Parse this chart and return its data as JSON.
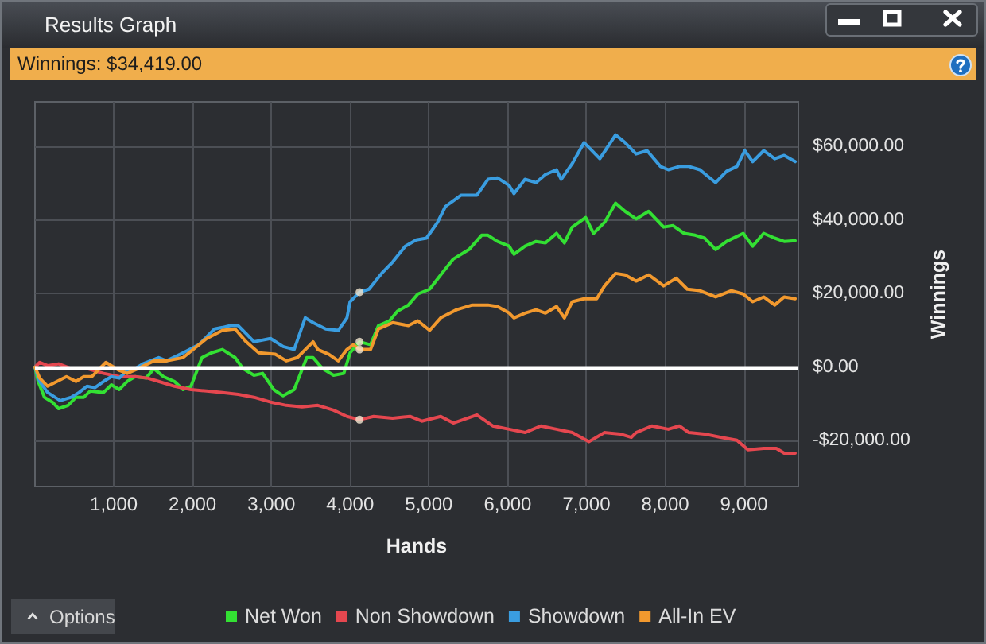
{
  "chart_data": {
    "type": "line",
    "title": "Results Graph",
    "subtitle": "Winnings: $34,419.00",
    "xlabel": "Hands",
    "ylabel": "Winnings",
    "annotations": [
      "Options"
    ],
    "xlim": [
      0,
      9690
    ],
    "ylim": [
      -32500,
      72200
    ],
    "xticks": [
      {
        "value": 1000,
        "label": "1,000"
      },
      {
        "value": 2000,
        "label": "2,000"
      },
      {
        "value": 3000,
        "label": "3,000"
      },
      {
        "value": 4000,
        "label": "4,000"
      },
      {
        "value": 5000,
        "label": "5,000"
      },
      {
        "value": 6000,
        "label": "6,000"
      },
      {
        "value": 7000,
        "label": "7,000"
      },
      {
        "value": 8000,
        "label": "8,000"
      },
      {
        "value": 9000,
        "label": "9,000"
      }
    ],
    "yticks": [
      {
        "value": -20000,
        "label": "-$20,000.00"
      },
      {
        "value": 0,
        "label": "$0.00"
      },
      {
        "value": 20000,
        "label": "$20,000.00"
      },
      {
        "value": 40000,
        "label": "$40,000.00"
      },
      {
        "value": 60000,
        "label": "$60,000.00"
      }
    ],
    "grid": true,
    "legend": "bottom",
    "ref_lines": [
      {
        "axis": "y",
        "value": 0,
        "color": "#ffffff"
      }
    ],
    "series": [
      {
        "name": "Net Won",
        "color": "#33e033",
        "x": [
          0,
          40,
          120,
          220,
          300,
          420,
          520,
          620,
          700,
          870,
          970,
          1070,
          1170,
          1270,
          1410,
          1510,
          1630,
          1770,
          1880,
          1980,
          2120,
          2240,
          2380,
          2540,
          2640,
          2780,
          2890,
          3030,
          3150,
          3290,
          3450,
          3530,
          3650,
          3790,
          3920,
          4000,
          4120,
          4260,
          4360,
          4500,
          4600,
          4740,
          4860,
          5010,
          5150,
          5310,
          5510,
          5670,
          5750,
          5870,
          6020,
          6080,
          6220,
          6360,
          6480,
          6620,
          6720,
          6820,
          6990,
          7090,
          7230,
          7370,
          7490,
          7630,
          7790,
          7980,
          8100,
          8240,
          8380,
          8500,
          8640,
          8780,
          8990,
          9110,
          9250,
          9390,
          9510,
          9650
        ],
        "values": [
          0,
          -3900,
          -8200,
          -9500,
          -11300,
          -10400,
          -8200,
          -8200,
          -6500,
          -6900,
          -4800,
          -6100,
          -3900,
          -2600,
          -3000,
          -400,
          -2600,
          -3900,
          -6100,
          -5200,
          2600,
          3900,
          4800,
          2600,
          -400,
          -2200,
          -1700,
          -6100,
          -7800,
          -6100,
          2600,
          2600,
          -400,
          -2200,
          -1700,
          3900,
          6900,
          6100,
          11300,
          12600,
          15200,
          16900,
          19900,
          21200,
          25100,
          29400,
          32000,
          35900,
          35900,
          34200,
          32900,
          30700,
          32900,
          34200,
          33800,
          36400,
          33800,
          38100,
          40700,
          36400,
          39400,
          44600,
          42400,
          40300,
          42400,
          38100,
          38500,
          36400,
          35900,
          35100,
          32000,
          34200,
          36400,
          32900,
          36400,
          35100,
          34200,
          34400
        ]
      },
      {
        "name": "Non Showdown",
        "color": "#e5474f",
        "x": [
          0,
          60,
          160,
          300,
          460,
          660,
          870,
          1070,
          1270,
          1430,
          1570,
          1770,
          1980,
          2180,
          2380,
          2580,
          2780,
          2990,
          3190,
          3390,
          3590,
          3790,
          3960,
          4120,
          4300,
          4540,
          4760,
          4910,
          5150,
          5310,
          5610,
          5810,
          6020,
          6220,
          6420,
          6620,
          6820,
          7030,
          7230,
          7430,
          7570,
          7630,
          7830,
          8040,
          8180,
          8300,
          8500,
          8700,
          8910,
          9050,
          9250,
          9410,
          9510,
          9650
        ],
        "values": [
          0,
          1300,
          400,
          900,
          -400,
          -400,
          -1700,
          -2600,
          -2600,
          -3000,
          -3900,
          -5200,
          -6100,
          -6500,
          -6900,
          -7400,
          -8200,
          -9500,
          -10400,
          -10800,
          -10400,
          -11700,
          -13400,
          -14300,
          -13400,
          -13900,
          -13400,
          -14700,
          -13400,
          -15200,
          -13000,
          -16000,
          -16900,
          -17800,
          -16000,
          -16900,
          -17800,
          -20300,
          -17800,
          -18200,
          -19100,
          -17800,
          -16000,
          -16900,
          -16000,
          -17800,
          -18200,
          -19100,
          -19900,
          -22500,
          -22100,
          -22100,
          -23400,
          -23400
        ]
      },
      {
        "name": "Showdown",
        "color": "#3a9de0",
        "x": [
          0,
          60,
          160,
          320,
          460,
          560,
          660,
          760,
          870,
          970,
          1070,
          1170,
          1270,
          1370,
          1570,
          1670,
          1880,
          2080,
          2280,
          2380,
          2480,
          2580,
          2680,
          2780,
          2990,
          3150,
          3290,
          3430,
          3530,
          3690,
          3850,
          3960,
          4000,
          4120,
          4240,
          4400,
          4540,
          4700,
          4840,
          4970,
          5110,
          5210,
          5410,
          5610,
          5750,
          5870,
          6020,
          6080,
          6220,
          6360,
          6480,
          6620,
          6680,
          6820,
          6970,
          7030,
          7170,
          7370,
          7490,
          7630,
          7770,
          7940,
          8040,
          8180,
          8300,
          8440,
          8640,
          8780,
          8910,
          9010,
          9110,
          9250,
          9390,
          9510,
          9650
        ],
        "values": [
          0,
          -3900,
          -6900,
          -9100,
          -8200,
          -6900,
          -5200,
          -5600,
          -3900,
          -2600,
          -3000,
          -900,
          -400,
          900,
          2600,
          1700,
          3900,
          6100,
          10400,
          10800,
          11300,
          11300,
          9100,
          6900,
          7800,
          5600,
          4800,
          13400,
          12100,
          10400,
          10000,
          13400,
          17800,
          20400,
          21200,
          25500,
          28600,
          32900,
          34600,
          35100,
          39400,
          43700,
          46800,
          46800,
          51100,
          51500,
          49400,
          47200,
          51100,
          50200,
          52400,
          53700,
          51100,
          55400,
          61100,
          59800,
          56700,
          63200,
          61100,
          58000,
          58900,
          54600,
          53700,
          54600,
          54600,
          53700,
          50200,
          53300,
          54600,
          58900,
          55900,
          58900,
          56700,
          57600,
          55900
        ]
      },
      {
        "name": "All-In EV",
        "color": "#f2992e",
        "x": [
          0,
          60,
          160,
          280,
          400,
          520,
          620,
          720,
          820,
          900,
          1070,
          1170,
          1310,
          1510,
          1670,
          1880,
          2180,
          2380,
          2540,
          2680,
          2840,
          3050,
          3190,
          3330,
          3530,
          3590,
          3730,
          3850,
          3960,
          4040,
          4120,
          4260,
          4360,
          4540,
          4740,
          4860,
          5010,
          5150,
          5350,
          5550,
          5750,
          5870,
          6020,
          6080,
          6220,
          6360,
          6480,
          6620,
          6720,
          6820,
          6970,
          7130,
          7230,
          7370,
          7490,
          7630,
          7790,
          7980,
          8140,
          8280,
          8440,
          8640,
          8840,
          8990,
          9110,
          9250,
          9390,
          9510,
          9650
        ],
        "values": [
          0,
          -3000,
          -5200,
          -3900,
          -2600,
          -3900,
          -2600,
          -2600,
          -400,
          1300,
          -900,
          -1700,
          -400,
          1700,
          1700,
          2600,
          7800,
          10000,
          10400,
          6900,
          3900,
          3500,
          1700,
          2600,
          6900,
          4800,
          3500,
          1700,
          4800,
          6100,
          4800,
          4800,
          10400,
          12100,
          11300,
          12600,
          10000,
          13400,
          15600,
          16900,
          16900,
          16500,
          14700,
          13400,
          14700,
          15600,
          14700,
          16500,
          13400,
          17800,
          18600,
          18600,
          22100,
          25500,
          25100,
          23400,
          25100,
          22100,
          24200,
          21200,
          20800,
          19100,
          20800,
          19900,
          17800,
          19100,
          16900,
          19100,
          18600
        ]
      },
      {
        "type": "scatter",
        "color": "#f3e6d0",
        "x": [
          4120,
          4120,
          4120,
          4120
        ],
        "values": [
          20400,
          6900,
          4800,
          -14300
        ]
      }
    ]
  }
}
